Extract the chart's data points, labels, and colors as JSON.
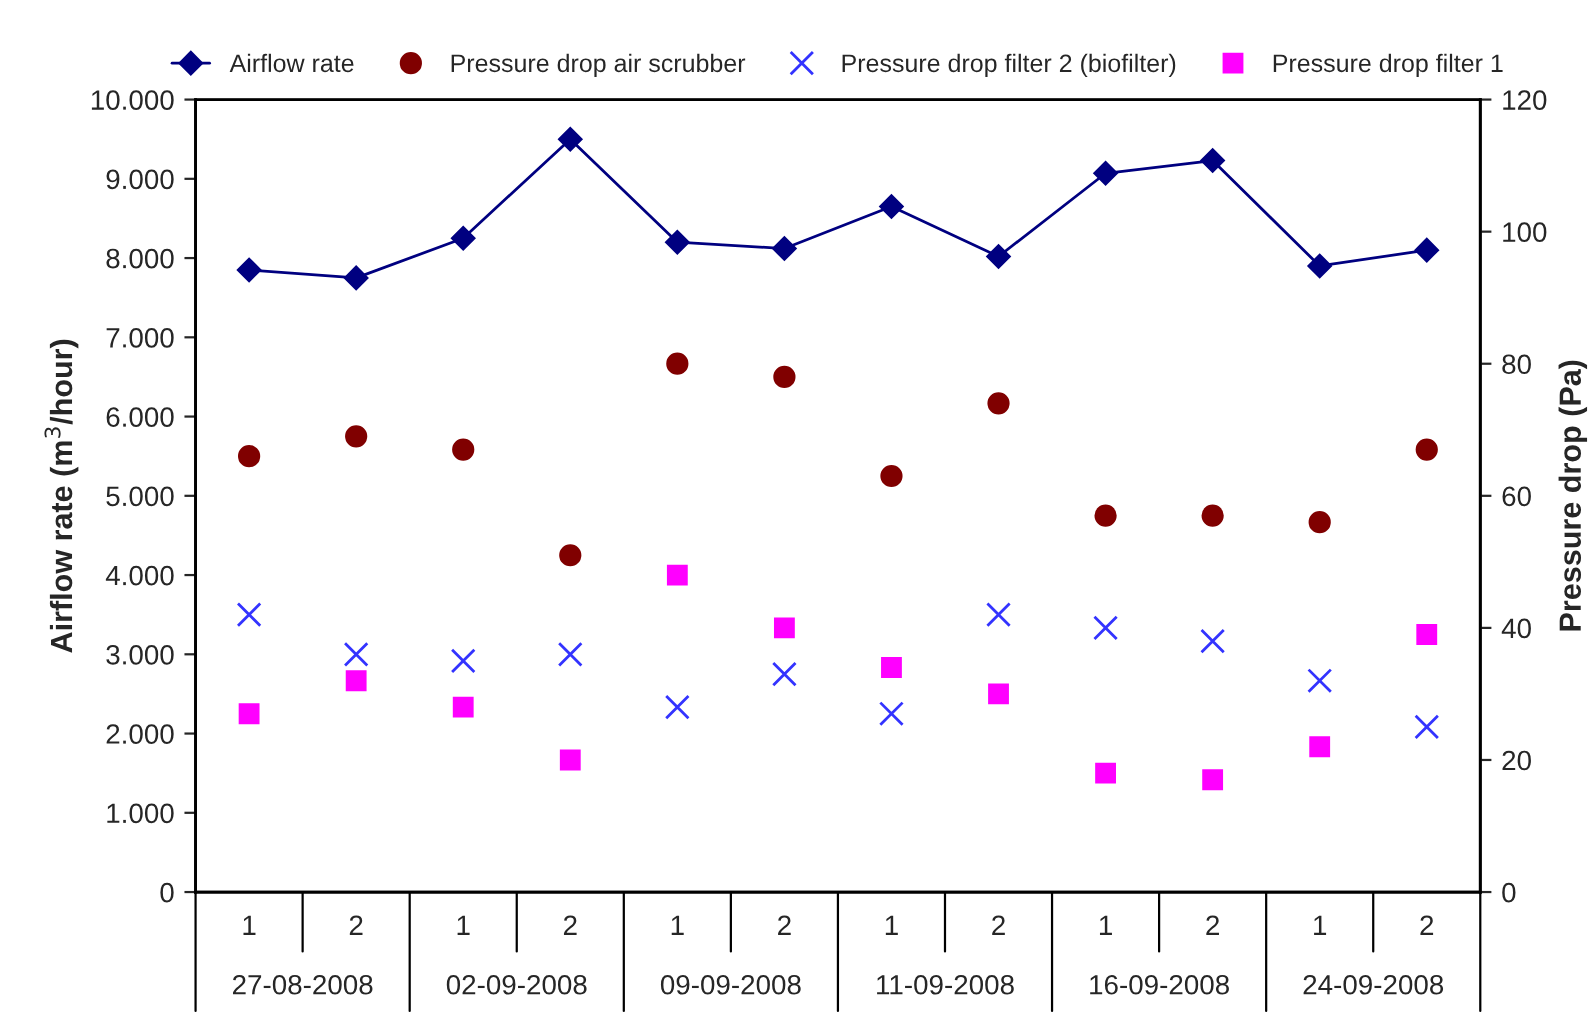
{
  "chart_data": {
    "type": "scatter",
    "categories": [
      "1",
      "2",
      "1",
      "2",
      "1",
      "2",
      "1",
      "2",
      "1",
      "2",
      "1",
      "2"
    ],
    "annotations": [
      "27-08-2008",
      "02-09-2008",
      "09-09-2008",
      "11-09-2008",
      "16-09-2008",
      "24-09-2008"
    ],
    "ylabel": "Airflow rate (m$^{3}$/hour)",
    "y2label": "Pressure drop (Pa)",
    "ylim": [
      0,
      10000
    ],
    "yticks": [
      {
        "value": 0,
        "label": "0"
      },
      {
        "value": 1000,
        "label": "1.000"
      },
      {
        "value": 2000,
        "label": "2.000"
      },
      {
        "value": 3000,
        "label": "3.000"
      },
      {
        "value": 4000,
        "label": "4.000"
      },
      {
        "value": 5000,
        "label": "5.000"
      },
      {
        "value": 6000,
        "label": "6.000"
      },
      {
        "value": 7000,
        "label": "7.000"
      },
      {
        "value": 8000,
        "label": "8.000"
      },
      {
        "value": 9000,
        "label": "9.000"
      },
      {
        "value": 10000,
        "label": "10.000"
      }
    ],
    "y2lim": [
      0,
      120
    ],
    "y2ticks": [
      0,
      20,
      40,
      60,
      80,
      100,
      120
    ],
    "legend": "top",
    "grid": false,
    "series": [
      {
        "name": "Airflow rate",
        "type": "line",
        "marker": "diamond",
        "color": "#000080",
        "values": [
          7850,
          7750,
          8250,
          9500,
          8200,
          8120,
          8650,
          8020,
          9070,
          9230,
          7900,
          8100
        ]
      },
      {
        "name": "Pressure drop air scrubber",
        "marker": "circle",
        "axis": "y2",
        "color": "#800000",
        "values": [
          66,
          69,
          67,
          51,
          80,
          78,
          63,
          74,
          57,
          57,
          56,
          67
        ]
      },
      {
        "name": "Pressure drop filter 2 (biofilter)",
        "marker": "cross",
        "axis": "y2",
        "color": "#3333ff",
        "values": [
          42,
          36,
          35,
          36,
          28,
          33,
          27,
          42,
          40,
          38,
          32,
          25
        ]
      },
      {
        "name": "Pressure drop filter 1",
        "marker": "square",
        "axis": "y2",
        "color": "#ff00ff",
        "values": [
          27,
          32,
          28,
          20,
          48,
          40,
          34,
          30,
          18,
          17,
          22,
          39
        ]
      }
    ]
  }
}
